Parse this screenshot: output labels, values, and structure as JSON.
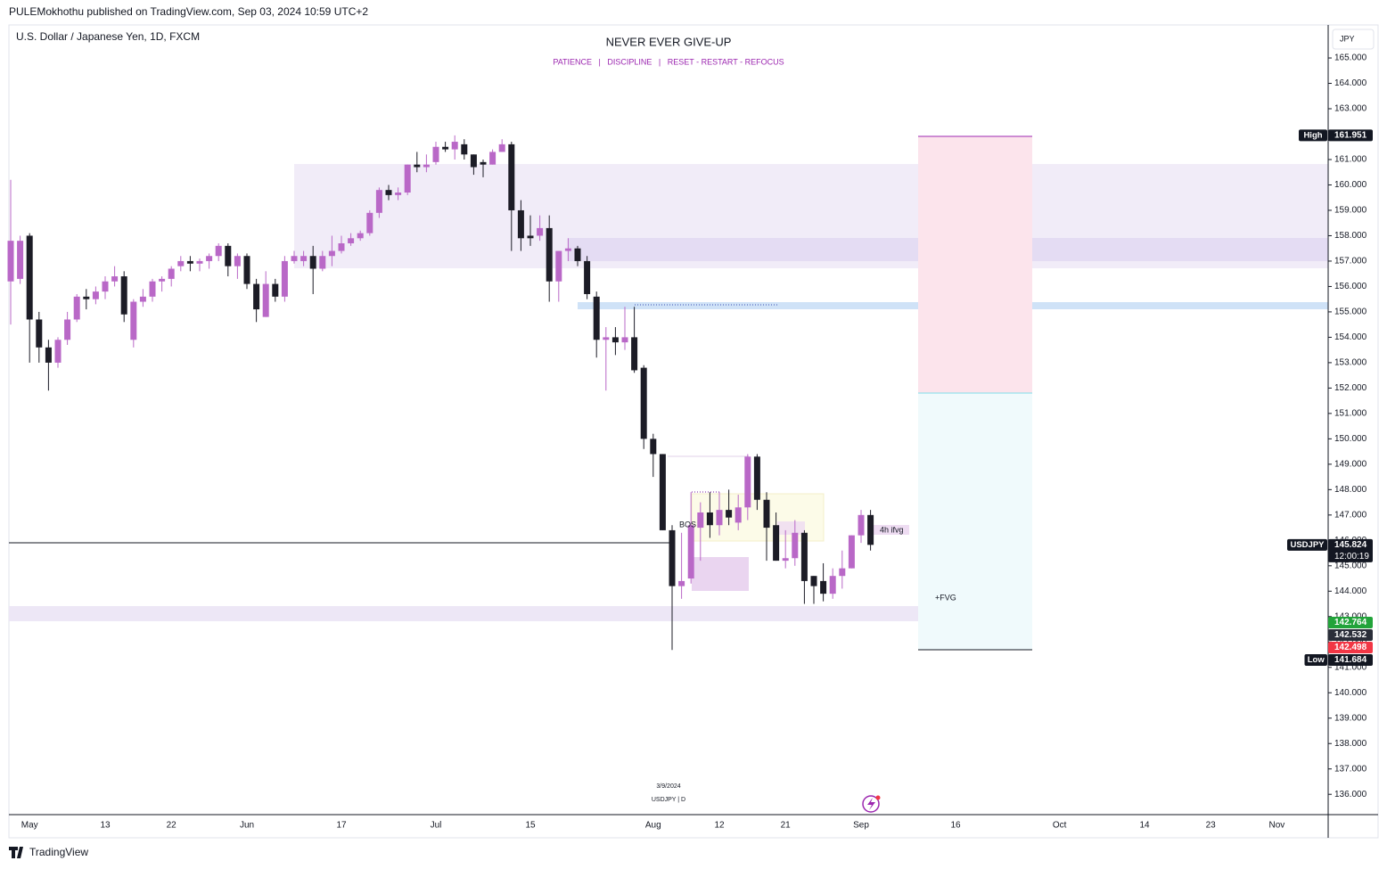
{
  "header": {
    "publisher": "PULEMokhothu published on TradingView.com, Sep 03, 2024 10:59 UTC+2",
    "symbol": "U.S. Dollar / Japanese Yen, 1D, FXCM",
    "currency": "JPY",
    "footer": "TradingView",
    "watermark_date": "3/9/2024",
    "watermark_symbol": "USDJPY | D"
  },
  "chart_data": {
    "type": "candlestick",
    "title": "NEVER EVER GIVE-UP",
    "subtitle": "PATIENCE   |   DISCIPLINE   |   RESET - RESTART - REFOCUS",
    "categories": [
      null,
      null,
      "May",
      null,
      null,
      null,
      null,
      null,
      null,
      null,
      "13",
      null,
      null,
      null,
      null,
      null,
      null,
      "22",
      null,
      null,
      null,
      null,
      null,
      null,
      null,
      "Jun",
      null,
      null,
      null,
      null,
      null,
      null,
      null,
      null,
      null,
      "17",
      null,
      null,
      null,
      null,
      null,
      null,
      null,
      null,
      null,
      "Jul",
      null,
      null,
      null,
      null,
      null,
      null,
      null,
      null,
      null,
      "15",
      null,
      null,
      null,
      null,
      null,
      null,
      null,
      null,
      null,
      null,
      null,
      null,
      "Aug",
      null,
      null,
      null,
      null,
      null,
      null,
      "12",
      null,
      null,
      null,
      null,
      null,
      null,
      "21",
      null,
      null,
      null,
      null,
      null,
      null,
      null,
      "Sep",
      null,
      null,
      null,
      null,
      null,
      null,
      null,
      null,
      null,
      "16",
      null,
      null,
      null,
      null,
      null,
      null,
      null,
      null,
      null,
      null,
      "Oct",
      null,
      null,
      null,
      null,
      null,
      null,
      null,
      null,
      "14",
      null,
      null,
      null,
      null,
      null,
      null,
      "23",
      null,
      null,
      null,
      null,
      null,
      null,
      "Nov"
    ],
    "series": [
      {
        "name": "USDJPY",
        "up_color": "#b968c7",
        "down_color": "#1c1c26",
        "open": [
          156.2,
          156.3,
          158.0,
          154.7,
          153.6,
          153.0,
          153.9,
          154.7,
          155.6,
          155.5,
          155.8,
          156.2,
          156.4,
          153.9,
          155.4,
          155.6,
          156.2,
          156.3,
          156.8,
          157.0,
          156.9,
          157.0,
          157.2,
          157.6,
          156.8,
          157.2,
          156.1,
          154.8,
          156.1,
          155.6,
          157.0,
          157.0,
          157.2,
          156.7,
          157.2,
          157.4,
          157.7,
          157.9,
          158.1,
          158.9,
          159.8,
          159.6,
          159.7,
          160.8,
          160.7,
          160.9,
          161.5,
          161.4,
          161.6,
          161.2,
          160.9,
          160.8,
          161.3,
          161.6,
          159.0,
          158.0,
          158.0,
          158.3,
          156.2,
          157.4,
          157.5,
          157.0,
          155.6,
          153.9,
          154.0,
          153.8,
          154.0,
          152.8,
          150.0,
          149.4,
          146.4,
          144.2,
          144.5,
          146.5,
          147.1,
          146.6,
          147.2,
          146.7,
          147.3,
          149.3,
          147.6,
          146.6,
          145.2,
          145.3,
          146.3,
          144.6,
          144.4,
          143.9,
          144.6,
          144.9,
          146.2,
          147.0,
          null,
          null,
          null,
          null,
          null,
          null,
          null,
          null,
          null,
          null,
          null,
          null,
          null,
          null,
          null,
          null,
          null,
          null,
          null,
          null,
          null,
          null,
          null,
          null,
          null,
          null,
          null,
          null,
          null,
          null,
          null,
          null,
          null,
          null,
          null,
          null,
          null,
          null,
          null,
          null,
          null
        ],
        "high": [
          160.2,
          158.0,
          158.1,
          155.0,
          153.9,
          154.0,
          155.0,
          155.7,
          155.9,
          156.0,
          156.4,
          156.8,
          156.6,
          155.5,
          155.9,
          156.3,
          156.4,
          156.8,
          157.2,
          157.2,
          157.1,
          157.3,
          157.7,
          157.7,
          157.3,
          157.3,
          156.3,
          156.6,
          156.3,
          157.2,
          157.4,
          157.4,
          157.6,
          157.4,
          158.0,
          158.0,
          158.1,
          158.2,
          159.0,
          159.9,
          160.0,
          159.9,
          160.8,
          161.3,
          161.2,
          161.7,
          161.7,
          161.951,
          161.8,
          161.2,
          161.0,
          161.4,
          161.8,
          161.7,
          159.4,
          158.8,
          158.8,
          158.8,
          157.4,
          157.9,
          157.6,
          157.2,
          155.8,
          154.4,
          154.4,
          155.2,
          155.2,
          152.9,
          150.2,
          149.4,
          146.6,
          146.3,
          147.9,
          147.5,
          147.9,
          147.9,
          148.0,
          147.8,
          149.4,
          149.4,
          147.9,
          147.1,
          146.4,
          146.8,
          146.4,
          144.6,
          145.1,
          144.9,
          145.6,
          146.2,
          147.2,
          147.2,
          null,
          null,
          null,
          null,
          null,
          null,
          null,
          null,
          null,
          null,
          null,
          null,
          null,
          null,
          null,
          null,
          null,
          null,
          null,
          null,
          null,
          null,
          null,
          null,
          null,
          null,
          null,
          null,
          null,
          null,
          null,
          null,
          null,
          null,
          null,
          null,
          null,
          null,
          null,
          null,
          null
        ],
        "low": [
          154.5,
          156.1,
          153.0,
          153.0,
          151.9,
          152.8,
          153.7,
          154.6,
          155.1,
          155.3,
          155.5,
          156.0,
          154.6,
          153.6,
          155.2,
          155.4,
          155.8,
          156.0,
          156.6,
          156.6,
          156.6,
          156.7,
          157.0,
          156.4,
          156.3,
          155.9,
          154.6,
          154.8,
          155.4,
          155.4,
          156.9,
          156.8,
          155.7,
          156.6,
          156.8,
          157.3,
          157.6,
          157.8,
          158.0,
          158.7,
          159.4,
          159.4,
          159.6,
          160.5,
          160.5,
          160.8,
          161.3,
          161.0,
          161.0,
          160.4,
          160.3,
          160.8,
          161.3,
          157.4,
          157.4,
          157.6,
          157.8,
          155.4,
          155.4,
          157.0,
          156.8,
          155.5,
          153.2,
          151.9,
          153.3,
          153.5,
          152.6,
          149.6,
          148.5,
          146.4,
          141.684,
          143.7,
          144.3,
          145.2,
          146.1,
          146.2,
          146.6,
          146.4,
          146.8,
          147.2,
          145.2,
          145.2,
          144.9,
          145.0,
          143.5,
          143.5,
          143.6,
          143.7,
          144.1,
          144.9,
          145.9,
          145.6,
          null,
          null,
          null,
          null,
          null,
          null,
          null,
          null,
          null,
          null,
          null,
          null,
          null,
          null,
          null,
          null,
          null,
          null,
          null,
          null,
          null,
          null,
          null,
          null,
          null,
          null,
          null,
          null,
          null,
          null,
          null,
          null,
          null,
          null,
          null,
          null,
          null,
          null,
          null,
          null,
          null
        ],
        "close": [
          157.8,
          157.8,
          154.7,
          153.6,
          153.0,
          153.9,
          154.7,
          155.6,
          155.5,
          155.8,
          156.2,
          156.4,
          154.9,
          155.4,
          155.6,
          156.2,
          156.3,
          156.7,
          157.0,
          156.9,
          157.0,
          157.2,
          157.6,
          156.8,
          157.2,
          156.1,
          155.1,
          156.1,
          155.6,
          157.0,
          157.2,
          157.2,
          156.7,
          157.2,
          157.4,
          157.7,
          157.9,
          158.1,
          158.9,
          159.8,
          159.6,
          159.7,
          160.8,
          160.7,
          160.8,
          161.5,
          161.4,
          161.7,
          161.2,
          160.7,
          160.8,
          161.3,
          161.6,
          159.0,
          157.9,
          157.9,
          158.3,
          156.2,
          157.4,
          157.5,
          157.0,
          155.7,
          153.9,
          154.0,
          153.8,
          154.0,
          152.7,
          150.0,
          149.4,
          146.4,
          144.2,
          144.4,
          146.6,
          147.1,
          146.6,
          147.2,
          146.9,
          147.3,
          149.3,
          147.6,
          146.5,
          145.2,
          145.3,
          146.3,
          144.4,
          144.2,
          143.9,
          144.6,
          144.9,
          146.2,
          147.0,
          145.824,
          null,
          null,
          null,
          null,
          null,
          null,
          null,
          null,
          null,
          null,
          null,
          null,
          null,
          null,
          null,
          null,
          null,
          null,
          null,
          null,
          null,
          null,
          null,
          null,
          null,
          null,
          null,
          null,
          null,
          null,
          null,
          null,
          null,
          null,
          null,
          null,
          null,
          null,
          null,
          null,
          null
        ]
      }
    ],
    "ylim": [
      135.2,
      166.3
    ],
    "yticks": [
      {
        "value": 136,
        "label": "136.000"
      },
      {
        "value": 137,
        "label": "137.000"
      },
      {
        "value": 138,
        "label": "138.000"
      },
      {
        "value": 139,
        "label": "139.000"
      },
      {
        "value": 140,
        "label": "140.000"
      },
      {
        "value": 141,
        "label": "141.000"
      },
      {
        "value": 142,
        "label": "142.000"
      },
      {
        "value": 143,
        "label": "143.000"
      },
      {
        "value": 144,
        "label": "144.000"
      },
      {
        "value": 145,
        "label": "145.000"
      },
      {
        "value": 146,
        "label": "146.000"
      },
      {
        "value": 147,
        "label": "147.000"
      },
      {
        "value": 148,
        "label": "148.000"
      },
      {
        "value": 149,
        "label": "149.000"
      },
      {
        "value": 150,
        "label": "150.000"
      },
      {
        "value": 151,
        "label": "151.000"
      },
      {
        "value": 152,
        "label": "152.000"
      },
      {
        "value": 153,
        "label": "153.000"
      },
      {
        "value": 154,
        "label": "154.000"
      },
      {
        "value": 155,
        "label": "155.000"
      },
      {
        "value": 156,
        "label": "156.000"
      },
      {
        "value": 157,
        "label": "157.000"
      },
      {
        "value": 158,
        "label": "158.000"
      },
      {
        "value": 159,
        "label": "159.000"
      },
      {
        "value": 160,
        "label": "160.000"
      },
      {
        "value": 161,
        "label": "161.000"
      },
      {
        "value": 162,
        "label": "162.000"
      },
      {
        "value": 163,
        "label": "163.000"
      },
      {
        "value": 164,
        "label": "164.000"
      },
      {
        "value": 165,
        "label": "165.000"
      }
    ],
    "grid": false,
    "price_labels": [
      {
        "name": "High",
        "value": 161.951,
        "color": "#131722"
      },
      {
        "name": "USDJPY",
        "value": 145.824,
        "color": "#131722",
        "countdown": "12:00:19"
      },
      {
        "value": 142.764,
        "color": "#22a33a"
      },
      {
        "value": 142.532,
        "color": "#2a2e39"
      },
      {
        "value": 142.498,
        "color": "#f23645"
      },
      {
        "name": "Low",
        "value": 141.684,
        "color": "#131722"
      }
    ],
    "annotations": [
      "BOS",
      "4h ifvg",
      "+FVG"
    ]
  }
}
